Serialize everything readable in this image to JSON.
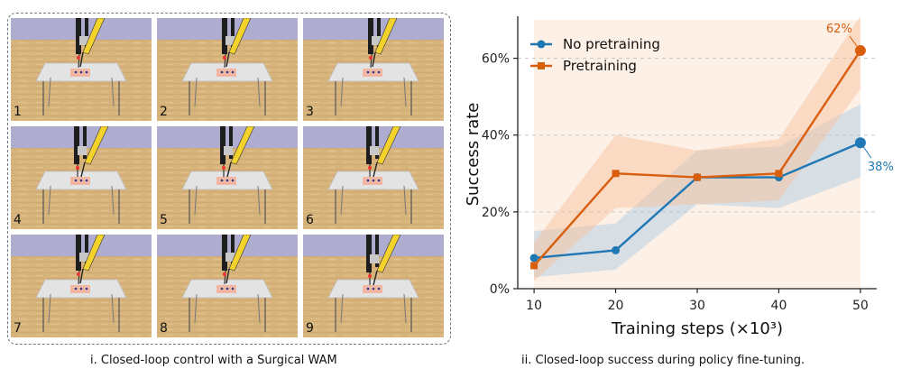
{
  "left_panel": {
    "caption": "i. Closed-loop control with a Surgical WAM",
    "frames": [
      "1",
      "2",
      "3",
      "4",
      "5",
      "6",
      "7",
      "8",
      "9"
    ],
    "colors": {
      "wall": "#aeadcf",
      "floor": "#d9b57f",
      "table": "#dcdcdc",
      "tool_yellow": "#f2d22b",
      "tool_dark": "#1e1e1e",
      "tissue": "#f2b7a2"
    }
  },
  "right_panel": {
    "caption": "ii. Closed-loop success during policy fine-tuning."
  },
  "chart_data": {
    "type": "line",
    "x": [
      10,
      20,
      30,
      40,
      50
    ],
    "xlabel": "Training steps (×10³)",
    "ylabel": "Success rate",
    "ylim": [
      0,
      0.7
    ],
    "xlim": [
      8,
      52
    ],
    "yticks": [
      "0%",
      "20%",
      "40%",
      "60%"
    ],
    "xticks": [
      "10",
      "20",
      "30",
      "40",
      "50"
    ],
    "grid": "horizontal dashed",
    "legend": "top-left",
    "series": [
      {
        "name": "No pretraining",
        "values": [
          0.08,
          0.1,
          0.29,
          0.29,
          0.38
        ],
        "band_low": [
          0.03,
          0.05,
          0.22,
          0.21,
          0.29
        ],
        "band_high": [
          0.15,
          0.17,
          0.36,
          0.37,
          0.48
        ],
        "color": "#1f77b4",
        "marker": "circle",
        "end_label": "38%"
      },
      {
        "name": "Pretraining",
        "values": [
          0.06,
          0.3,
          0.29,
          0.3,
          0.62
        ],
        "band_low": [
          0.02,
          0.21,
          0.22,
          0.23,
          0.52
        ],
        "band_high": [
          0.12,
          0.4,
          0.36,
          0.39,
          0.71
        ],
        "color": "#d95f0e",
        "marker": "square",
        "end_label": "62%"
      }
    ]
  }
}
